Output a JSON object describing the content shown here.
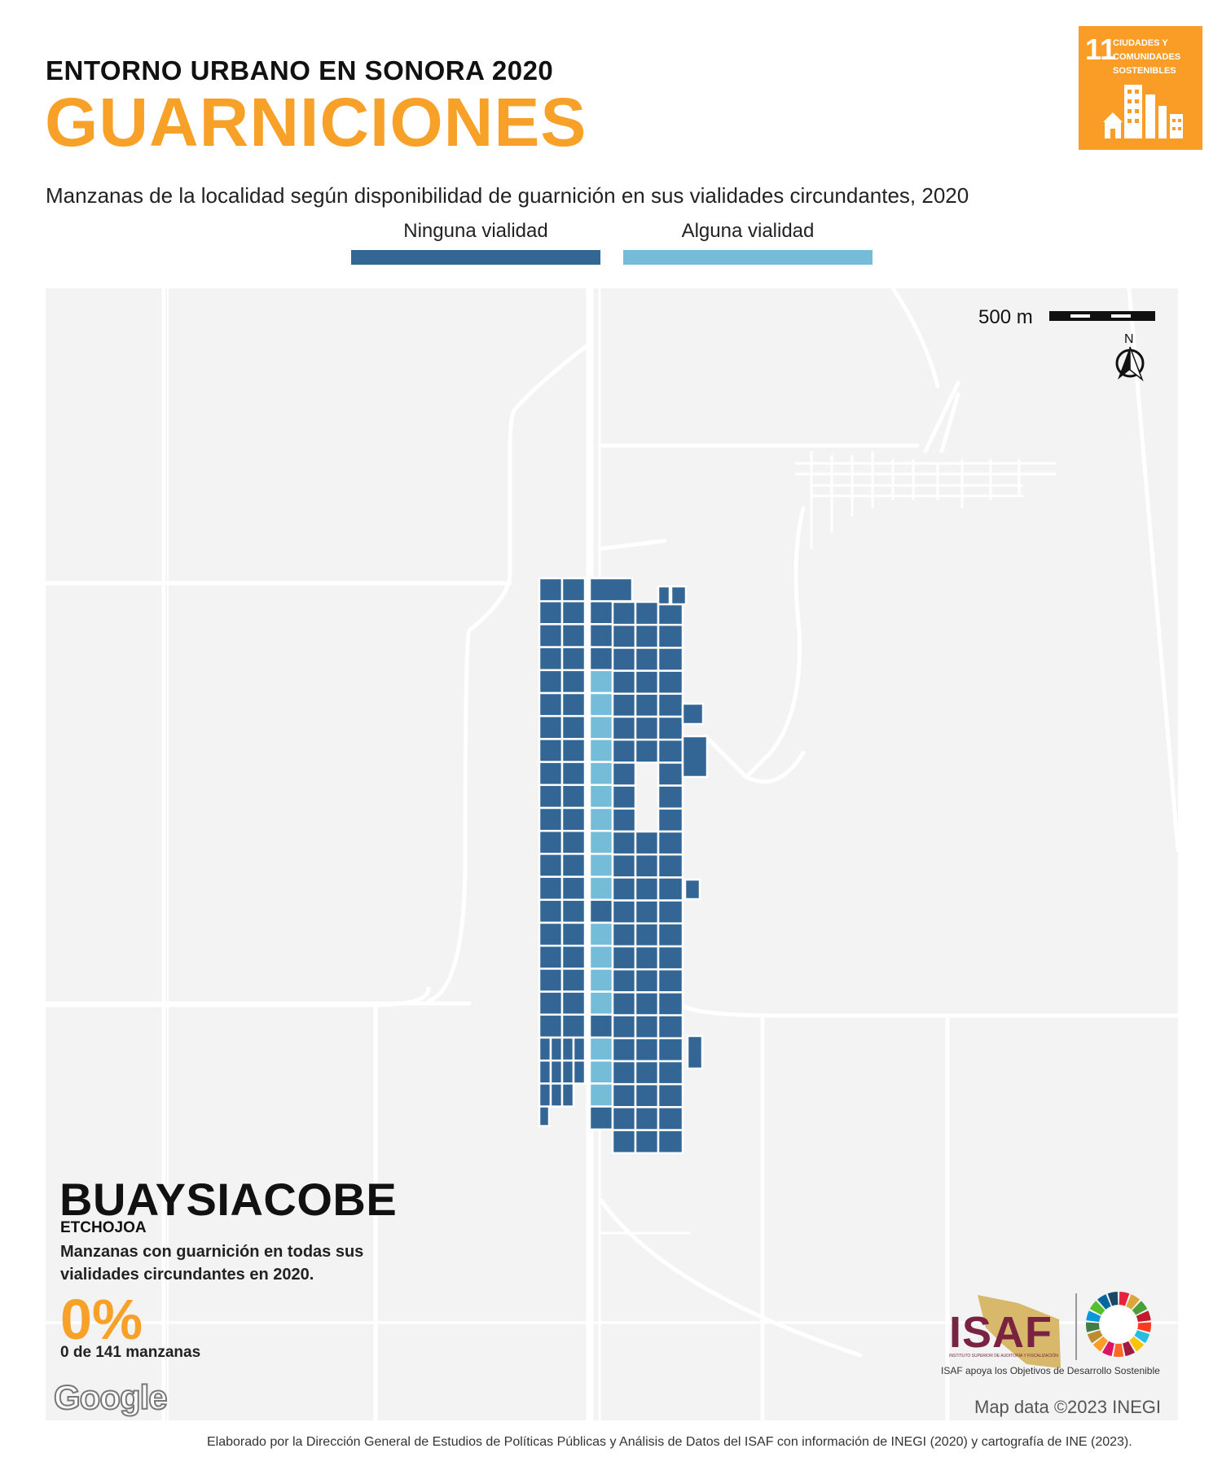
{
  "header": {
    "supertitle": "ENTORNO URBANO EN SONORA 2020",
    "title": "GUARNICIONES",
    "subtitle": "Manzanas de la localidad según disponibilidad de guarnición en sus vialidades circundantes, 2020"
  },
  "legend": {
    "items": [
      {
        "label": "Ninguna vialidad",
        "color": "#336694"
      },
      {
        "label": "Alguna vialidad",
        "color": "#74bcd8"
      }
    ]
  },
  "sdg_badge": {
    "number": "11",
    "label": "Ciudades y comunidades sostenibles",
    "color": "#f99d26"
  },
  "map": {
    "scale_label": "500 m",
    "north_label": "N",
    "colors": {
      "background": "#f3f3f3",
      "roads": "#ffffff",
      "none": "#336694",
      "some": "#74bcd8"
    },
    "attribution": "Map data ©2023 INEGI",
    "provider_logo": "Google"
  },
  "stats": {
    "locality": "BUAYSIACOBE",
    "municipality": "ETCHOJOA",
    "indicator": "Manzanas con guarnición en todas sus vialidades circundantes en 2020.",
    "percent": "0%",
    "count": "0 de 141 manzanas"
  },
  "logos": {
    "isaf": "ISAF",
    "isaf_fullname": "INSTITUTO SUPERIOR DE AUDITORÍA Y FISCALIZACIÓN",
    "tagline": "ISAF apoya los Objetivos de Desarrollo Sostenible"
  },
  "footer": "Elaborado por la Dirección General de Estudios de Políticas Públicas y Análisis de Datos del ISAF con información de INEGI (2020) y cartografía de INE (2023)."
}
